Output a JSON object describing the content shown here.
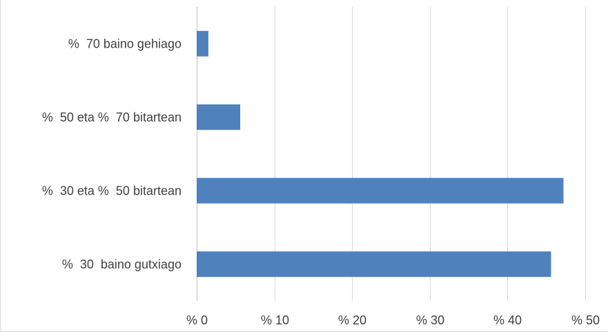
{
  "chart_data": {
    "type": "bar",
    "orientation": "horizontal",
    "categories": [
      "%  70 baino gehiago",
      "%  50 eta %  70 bitartean",
      "%  30 eta %  50 bitartean",
      "%  30  baino gutxiago"
    ],
    "values": [
      1.5,
      5.6,
      47.2,
      45.6
    ],
    "x_ticks": [
      "% 0",
      "% 10",
      "% 20",
      "% 30",
      "% 40",
      "% 50"
    ],
    "xlim": [
      0,
      50
    ],
    "grid": true,
    "legend": "none",
    "bar_color": "#4f81bd"
  }
}
